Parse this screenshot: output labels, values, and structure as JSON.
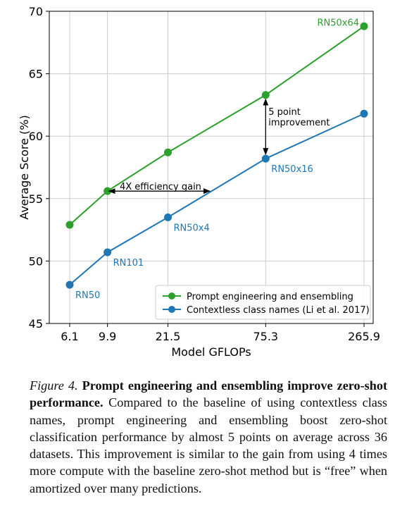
{
  "chart_data": {
    "type": "line",
    "xlabel": "Model GFLOPs",
    "ylabel": "Average Score (%)",
    "ylim": [
      45,
      70
    ],
    "yticks": [
      45,
      50,
      55,
      60,
      65,
      70
    ],
    "x": [
      6.1,
      9.9,
      21.5,
      75.3,
      265.9
    ],
    "x_tick_labels": [
      "6.1",
      "9.9",
      "21.5",
      "75.3",
      "265.9"
    ],
    "xscale": "log",
    "grid": true,
    "legend_position": "lower-right",
    "series": [
      {
        "name": "Prompt engineering and ensembling",
        "color": "#2ca02c",
        "values": [
          52.9,
          55.6,
          58.7,
          63.3,
          68.8
        ],
        "point_labels": [
          "",
          "",
          "",
          "",
          "RN50x64"
        ]
      },
      {
        "name": "Contextless class names (Li et al. 2017)",
        "color": "#1f77b4",
        "values": [
          48.1,
          50.7,
          53.5,
          58.2,
          61.8
        ],
        "point_labels": [
          "RN50",
          "RN101",
          "RN50x4",
          "RN50x16",
          ""
        ]
      }
    ],
    "annotations": [
      {
        "text": "4X efficiency gain"
      },
      {
        "text_lines": [
          "5 point",
          "improvement"
        ]
      }
    ]
  },
  "caption": {
    "figure_label": "Figure 4.",
    "bold_text": "Prompt engineering and ensembling improve zero-shot performance.",
    "body_text": "Compared to the baseline of using contextless class names, prompt engineering and ensembling boost zero-shot classification performance by almost 5 points on average across 36 datasets. This improvement is similar to the gain from using 4 times more compute with the baseline zero-shot method but is “free” when amortized over many predictions."
  }
}
